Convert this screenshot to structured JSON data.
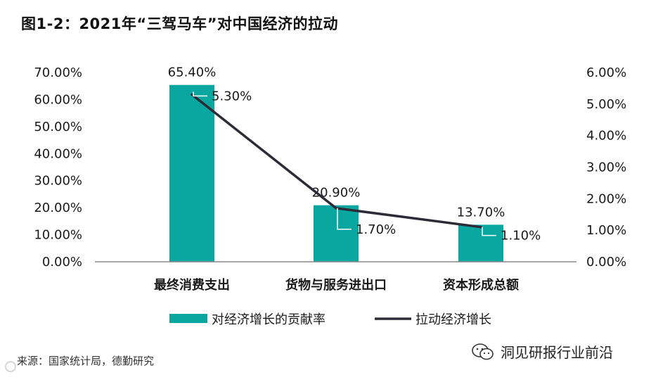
{
  "title": "图1-2：2021年“三驾马车”对中国经济的拉动",
  "source": "来源：国家统计局，德勤研究",
  "brand": "洞见研报行业前沿",
  "colors": {
    "bar": "#0aa7a1",
    "line": "#2e2b38",
    "axis": "#888888",
    "text": "#1a1a1a"
  },
  "chart_data": {
    "type": "bar",
    "categories": [
      "最终消费支出",
      "货物与服务进出口",
      "资本形成总额"
    ],
    "series": [
      {
        "name": "对经济增长的贡献率",
        "type": "bar",
        "axis": "left",
        "values": [
          65.4,
          20.9,
          13.7
        ],
        "labels": [
          "65.40%",
          "20.90%",
          "13.70%"
        ]
      },
      {
        "name": "拉动经济增长",
        "type": "line",
        "axis": "right",
        "values": [
          5.3,
          1.7,
          1.1
        ],
        "labels": [
          "5.30%",
          "1.70%",
          "1.10%"
        ]
      }
    ],
    "left_axis": {
      "ylim": [
        0,
        70
      ],
      "ticks": [
        "0.00%",
        "10.00%",
        "20.00%",
        "30.00%",
        "40.00%",
        "50.00%",
        "60.00%",
        "70.00%"
      ]
    },
    "right_axis": {
      "ylim": [
        0,
        6
      ],
      "ticks": [
        "0.00%",
        "1.00%",
        "2.00%",
        "3.00%",
        "4.00%",
        "5.00%",
        "6.00%"
      ]
    },
    "grid": false,
    "legend": "bottom"
  }
}
